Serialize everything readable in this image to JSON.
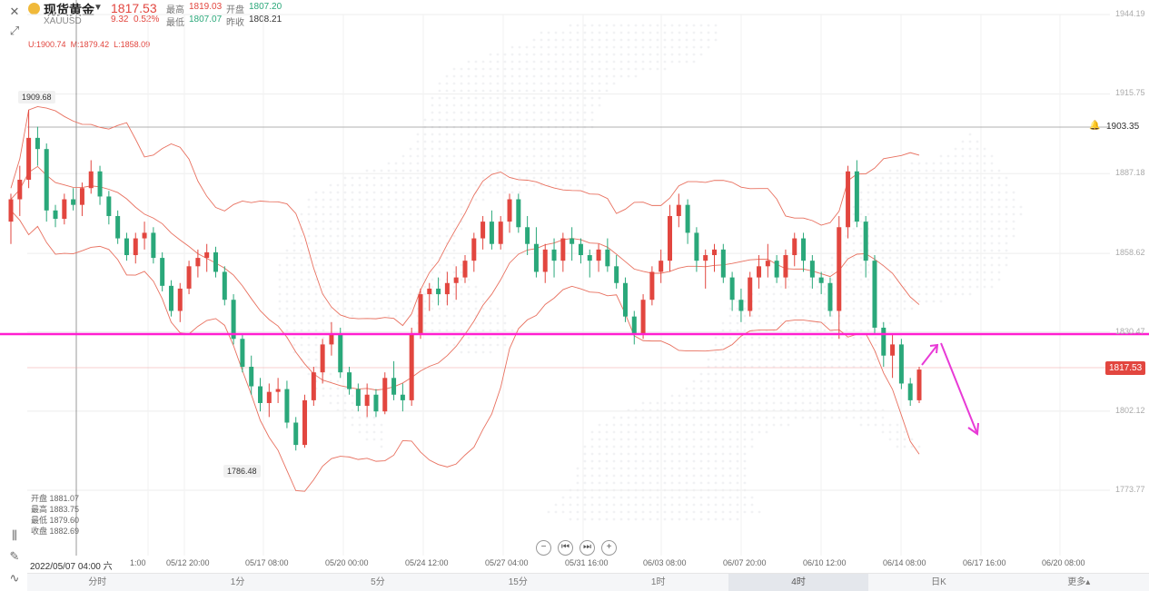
{
  "header": {
    "name": "现货黄金",
    "symbol": "XAUUSD",
    "price": "1817.53",
    "change": "9.32",
    "change_pct": "0.52%",
    "high_label": "最高",
    "high": "1819.03",
    "low_label": "最低",
    "low": "1807.07",
    "open_label": "开盘",
    "open": "1807.20",
    "prev_label": "昨收",
    "prev": "1808.21"
  },
  "boll": {
    "upper": "U:1900.74",
    "mid": "M:1879.42",
    "lower": "L:1858.09"
  },
  "crosshair_ohlc": {
    "open": "开盘 1881.07",
    "high": "最高 1883.75",
    "low": "最低 1879.60",
    "close": "收盘 1882.69",
    "date": "2022/05/07 04:00 六"
  },
  "y_axis": [
    "1944.19",
    "1915.75",
    "1887.18",
    "1858.62",
    "1830.47",
    "1802.12",
    "1773.77"
  ],
  "x_axis": [
    "1:00",
    "05/12 20:00",
    "05/17 08:00",
    "05/20 00:00",
    "05/24 12:00",
    "05/27 04:00",
    "05/31 16:00",
    "06/03 08:00",
    "06/07 20:00",
    "06/10 12:00",
    "06/14 08:00",
    "06/17 16:00",
    "06/20 08:00"
  ],
  "high_label": "1909.68",
  "low_label": "1786.48",
  "price_tag": "1817.53",
  "hline_value": "1903.35",
  "tabs": [
    "分时",
    "1分",
    "5分",
    "15分",
    "1时",
    "4时",
    "日K",
    "更多▴"
  ],
  "active_tab": "4时",
  "zoom": [
    "−",
    "⏮",
    "⏭",
    "+"
  ],
  "colors": {
    "up": "#e2463f",
    "down": "#2aa87a",
    "boll": "#e8705f",
    "support": "#ff1fd0",
    "arrow": "#e83ad6"
  },
  "chart_data": {
    "type": "candlestick",
    "ylim": [
      1773.77,
      1944.19
    ],
    "candles": [
      [
        1870,
        1880,
        1862,
        1878
      ],
      [
        1878,
        1890,
        1872,
        1885
      ],
      [
        1885,
        1910,
        1882,
        1900
      ],
      [
        1900,
        1904,
        1890,
        1896
      ],
      [
        1896,
        1898,
        1870,
        1874
      ],
      [
        1874,
        1876,
        1868,
        1871
      ],
      [
        1871,
        1880,
        1869,
        1878
      ],
      [
        1878,
        1882,
        1874,
        1876
      ],
      [
        1876,
        1884,
        1872,
        1882
      ],
      [
        1882,
        1892,
        1880,
        1888
      ],
      [
        1888,
        1890,
        1876,
        1879
      ],
      [
        1879,
        1881,
        1869,
        1872
      ],
      [
        1872,
        1874,
        1862,
        1864
      ],
      [
        1864,
        1866,
        1856,
        1858
      ],
      [
        1858,
        1866,
        1855,
        1864
      ],
      [
        1864,
        1870,
        1860,
        1866
      ],
      [
        1866,
        1868,
        1855,
        1857
      ],
      [
        1857,
        1859,
        1845,
        1847
      ],
      [
        1847,
        1849,
        1836,
        1838
      ],
      [
        1838,
        1848,
        1834,
        1846
      ],
      [
        1846,
        1856,
        1844,
        1854
      ],
      [
        1854,
        1860,
        1850,
        1857
      ],
      [
        1857,
        1862,
        1852,
        1859
      ],
      [
        1859,
        1861,
        1850,
        1852
      ],
      [
        1852,
        1854,
        1840,
        1842
      ],
      [
        1842,
        1844,
        1826,
        1828
      ],
      [
        1828,
        1830,
        1816,
        1818
      ],
      [
        1818,
        1822,
        1808,
        1811
      ],
      [
        1811,
        1814,
        1802,
        1805
      ],
      [
        1805,
        1812,
        1800,
        1809
      ],
      [
        1809,
        1814,
        1805,
        1810
      ],
      [
        1810,
        1813,
        1796,
        1798
      ],
      [
        1798,
        1800,
        1788,
        1790
      ],
      [
        1790,
        1808,
        1789,
        1806
      ],
      [
        1806,
        1818,
        1804,
        1816
      ],
      [
        1816,
        1828,
        1812,
        1826
      ],
      [
        1826,
        1834,
        1822,
        1830
      ],
      [
        1830,
        1832,
        1814,
        1816
      ],
      [
        1816,
        1818,
        1808,
        1810
      ],
      [
        1810,
        1812,
        1802,
        1804
      ],
      [
        1804,
        1812,
        1800,
        1808
      ],
      [
        1808,
        1810,
        1800,
        1802
      ],
      [
        1802,
        1816,
        1801,
        1814
      ],
      [
        1814,
        1820,
        1806,
        1808
      ],
      [
        1808,
        1812,
        1802,
        1806
      ],
      [
        1806,
        1832,
        1804,
        1830
      ],
      [
        1830,
        1846,
        1828,
        1844
      ],
      [
        1844,
        1848,
        1838,
        1846
      ],
      [
        1846,
        1850,
        1840,
        1844
      ],
      [
        1844,
        1852,
        1840,
        1848
      ],
      [
        1848,
        1854,
        1842,
        1850
      ],
      [
        1850,
        1858,
        1848,
        1856
      ],
      [
        1856,
        1866,
        1852,
        1864
      ],
      [
        1864,
        1872,
        1860,
        1870
      ],
      [
        1870,
        1874,
        1860,
        1862
      ],
      [
        1862,
        1872,
        1860,
        1870
      ],
      [
        1870,
        1880,
        1866,
        1878
      ],
      [
        1878,
        1880,
        1866,
        1868
      ],
      [
        1868,
        1872,
        1858,
        1862
      ],
      [
        1862,
        1868,
        1850,
        1852
      ],
      [
        1852,
        1862,
        1848,
        1860
      ],
      [
        1860,
        1864,
        1850,
        1856
      ],
      [
        1856,
        1866,
        1852,
        1864
      ],
      [
        1864,
        1868,
        1856,
        1862
      ],
      [
        1862,
        1864,
        1855,
        1858
      ],
      [
        1858,
        1860,
        1850,
        1856
      ],
      [
        1856,
        1862,
        1852,
        1860
      ],
      [
        1860,
        1864,
        1852,
        1854
      ],
      [
        1854,
        1858,
        1846,
        1848
      ],
      [
        1848,
        1850,
        1834,
        1836
      ],
      [
        1836,
        1838,
        1826,
        1830
      ],
      [
        1830,
        1844,
        1828,
        1842
      ],
      [
        1842,
        1854,
        1840,
        1852
      ],
      [
        1852,
        1860,
        1848,
        1856
      ],
      [
        1856,
        1876,
        1852,
        1872
      ],
      [
        1872,
        1880,
        1868,
        1876
      ],
      [
        1876,
        1878,
        1862,
        1866
      ],
      [
        1866,
        1868,
        1852,
        1856
      ],
      [
        1856,
        1860,
        1846,
        1858
      ],
      [
        1858,
        1862,
        1852,
        1860
      ],
      [
        1860,
        1862,
        1848,
        1850
      ],
      [
        1850,
        1852,
        1838,
        1842
      ],
      [
        1842,
        1846,
        1834,
        1838
      ],
      [
        1838,
        1852,
        1836,
        1850
      ],
      [
        1850,
        1858,
        1846,
        1854
      ],
      [
        1854,
        1862,
        1850,
        1856
      ],
      [
        1856,
        1858,
        1848,
        1850
      ],
      [
        1850,
        1860,
        1846,
        1858
      ],
      [
        1858,
        1866,
        1854,
        1864
      ],
      [
        1864,
        1866,
        1852,
        1856
      ],
      [
        1856,
        1858,
        1846,
        1850
      ],
      [
        1850,
        1852,
        1844,
        1848
      ],
      [
        1848,
        1850,
        1836,
        1838
      ],
      [
        1838,
        1872,
        1828,
        1868
      ],
      [
        1868,
        1890,
        1864,
        1888
      ],
      [
        1888,
        1892,
        1868,
        1870
      ],
      [
        1870,
        1872,
        1850,
        1856
      ],
      [
        1856,
        1858,
        1830,
        1832
      ],
      [
        1832,
        1834,
        1818,
        1822
      ],
      [
        1822,
        1830,
        1814,
        1826
      ],
      [
        1826,
        1828,
        1810,
        1812
      ],
      [
        1812,
        1814,
        1804,
        1806
      ],
      [
        1806,
        1818,
        1805,
        1817
      ]
    ]
  }
}
